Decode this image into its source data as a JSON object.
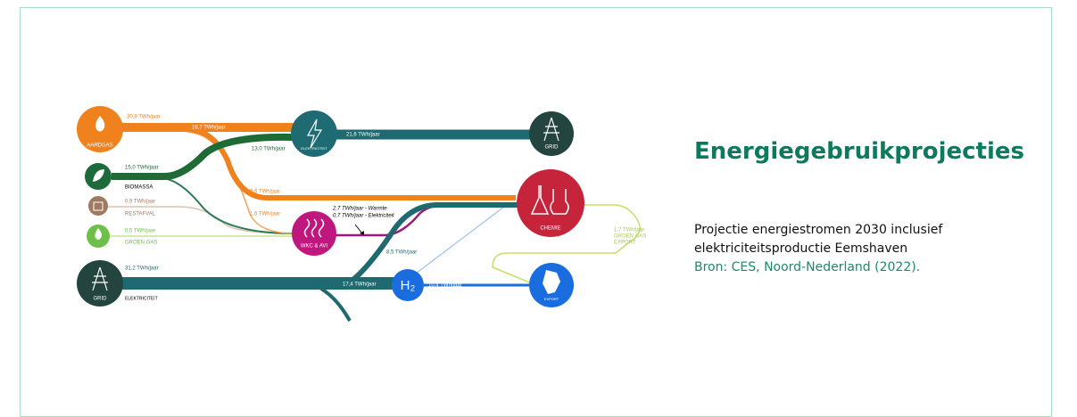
{
  "article": {
    "title": "Energiegebruikprojecties",
    "description": "Projectie energiestromen 2030 inclusief elektriciteitsproductie Eemshaven",
    "source": "Bron: CES, Noord-Nederland (2022)."
  },
  "diagram": {
    "nodes": {
      "aardgas": "AARDGAS",
      "elektriciteit": "ELEKTRICITEIT",
      "grid_top": "GRID",
      "biomassa": "BIOMASSA",
      "restafval": "RESTAFVAL",
      "groen_gas": "GROEN GAS",
      "grid_bottom": "GRID",
      "elektriciteit_bottom": "ELEKTRICITEIT",
      "wkc": "WKC & AVI",
      "chemie": "CHEMIE",
      "h2": "H₂",
      "export": "EXPORT",
      "groen_gas_export": [
        "GROEN GAS",
        "EXPORT"
      ]
    },
    "flows": {
      "aardgas": "30,9 TWh/jaar",
      "aardgas_elek": "16,7 TWh/jaar",
      "biomassa_elek": "13,0 TWh/jaar",
      "elek_grid": "21,6 TWh/jaar",
      "biomassa": "15,0 TWh/jaar",
      "restafval": "0,9 TWh/jaar",
      "groen_gas": "0,5 TWh/jaar",
      "aardgas_chemie": "9,6 TWh/jaar",
      "aardgas_wkc": "1,6 TWh/jaar",
      "wkc_warmte": "2,7 TWh/jaar - Warmte",
      "wkc_elek": "0,7 TWh/jaar - Elektriciteit",
      "grid_chemie": "8,5 TWh/jaar",
      "grid": "31,2 TWh/jaar",
      "grid_h2": "17,4 TWh/jaar",
      "h2_export": "10,4 TWh/jaar",
      "groen_gas_export": "1,7 TWh/jaar"
    }
  }
}
